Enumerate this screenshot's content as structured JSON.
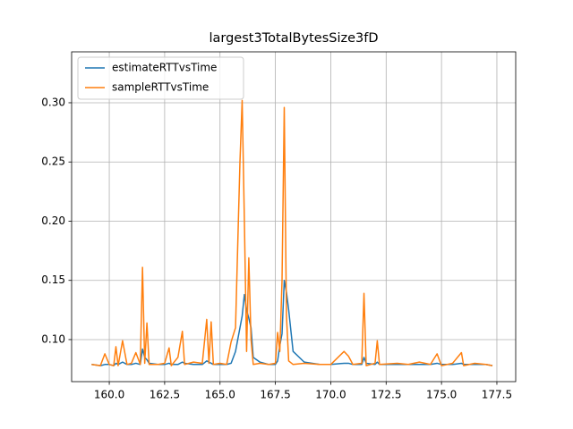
{
  "chart_data": {
    "type": "line",
    "title": "largest3TotalBytesSize3fD",
    "x": [
      159.2,
      159.6,
      159.8,
      160.0,
      160.2,
      160.3,
      160.4,
      160.6,
      160.8,
      161.0,
      161.2,
      161.4,
      161.5,
      161.6,
      161.7,
      161.8,
      162.2,
      162.5,
      162.7,
      162.8,
      163.1,
      163.3,
      163.4,
      163.8,
      164.2,
      164.4,
      164.5,
      164.6,
      164.7,
      165.0,
      165.3,
      165.5,
      165.7,
      165.9,
      166.0,
      166.1,
      166.2,
      166.3,
      166.4,
      166.5,
      166.8,
      167.2,
      167.5,
      167.6,
      167.7,
      167.8,
      167.9,
      168.0,
      168.1,
      168.3,
      168.8,
      169.5,
      170.0,
      170.6,
      170.8,
      171.0,
      171.4,
      171.5,
      171.6,
      172.0,
      172.1,
      172.2,
      173.0,
      173.5,
      174.0,
      174.5,
      174.8,
      175.0,
      175.5,
      175.9,
      176.0,
      176.5,
      177.0,
      177.3
    ],
    "series": [
      {
        "name": "estimateRTTvsTime",
        "color": "#1f77b4",
        "values": [
          0.079,
          0.078,
          0.079,
          0.079,
          0.078,
          0.08,
          0.079,
          0.081,
          0.079,
          0.079,
          0.08,
          0.079,
          0.092,
          0.085,
          0.083,
          0.08,
          0.079,
          0.079,
          0.08,
          0.079,
          0.079,
          0.081,
          0.08,
          0.079,
          0.079,
          0.082,
          0.081,
          0.08,
          0.079,
          0.079,
          0.079,
          0.08,
          0.09,
          0.11,
          0.12,
          0.138,
          0.125,
          0.118,
          0.11,
          0.085,
          0.081,
          0.079,
          0.079,
          0.082,
          0.095,
          0.105,
          0.15,
          0.14,
          0.125,
          0.09,
          0.081,
          0.079,
          0.079,
          0.08,
          0.08,
          0.079,
          0.079,
          0.085,
          0.08,
          0.079,
          0.081,
          0.079,
          0.079,
          0.079,
          0.079,
          0.079,
          0.08,
          0.079,
          0.079,
          0.08,
          0.079,
          0.079,
          0.079,
          0.078
        ]
      },
      {
        "name": "sampleRTTvsTime",
        "color": "#ff7f0e",
        "values": [
          0.079,
          0.078,
          0.088,
          0.079,
          0.078,
          0.094,
          0.078,
          0.099,
          0.079,
          0.08,
          0.089,
          0.079,
          0.161,
          0.08,
          0.114,
          0.079,
          0.079,
          0.08,
          0.093,
          0.078,
          0.085,
          0.107,
          0.079,
          0.081,
          0.08,
          0.117,
          0.08,
          0.115,
          0.079,
          0.08,
          0.079,
          0.098,
          0.11,
          0.25,
          0.302,
          0.2,
          0.09,
          0.169,
          0.1,
          0.079,
          0.08,
          0.079,
          0.08,
          0.106,
          0.09,
          0.15,
          0.296,
          0.12,
          0.082,
          0.079,
          0.08,
          0.079,
          0.079,
          0.09,
          0.086,
          0.079,
          0.08,
          0.139,
          0.078,
          0.08,
          0.099,
          0.079,
          0.08,
          0.079,
          0.081,
          0.079,
          0.088,
          0.078,
          0.08,
          0.089,
          0.078,
          0.08,
          0.079,
          0.078
        ]
      }
    ],
    "xlim": [
      158.3,
      178.35
    ],
    "ylim": [
      0.0645,
      0.343
    ],
    "xticks": [
      {
        "value": 160,
        "label": "160.0"
      },
      {
        "value": 162.5,
        "label": "162.5"
      },
      {
        "value": 165,
        "label": "165.0"
      },
      {
        "value": 167.5,
        "label": "167.5"
      },
      {
        "value": 170,
        "label": "170.0"
      },
      {
        "value": 172.5,
        "label": "172.5"
      },
      {
        "value": 175,
        "label": "175.0"
      },
      {
        "value": 177.5,
        "label": "177.5"
      }
    ],
    "yticks": [
      {
        "value": 0.1,
        "label": "0.10"
      },
      0.15,
      {
        "value": 0.2,
        "label": "0.20"
      },
      0.25,
      {
        "value": 0.3,
        "label": "0.30"
      }
    ],
    "grid": true,
    "legend": "upper left"
  }
}
